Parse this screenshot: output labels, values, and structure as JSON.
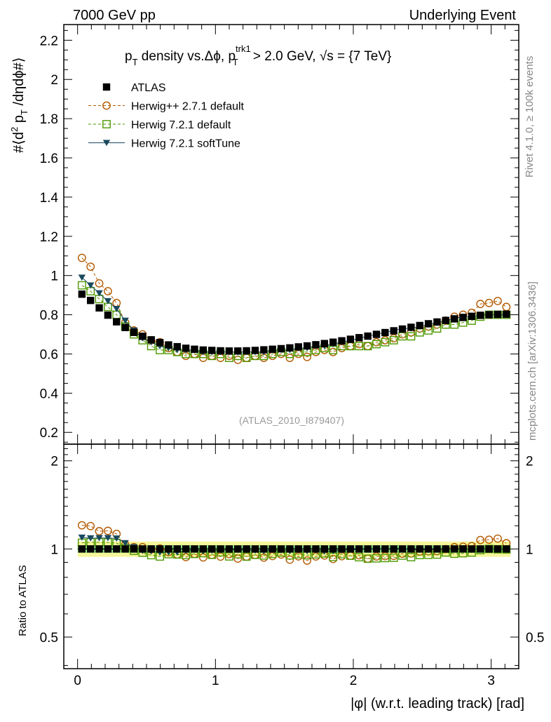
{
  "header": {
    "left": "7000 GeV pp",
    "right": "Underlying Event",
    "side_top": "Rivet 4.1.0, ≥ 100k events",
    "side_bottom": "mcplots.cern.ch [arXiv:1306.3436]"
  },
  "chart_data": {
    "type": "scatter",
    "title": "pT density vs.Δφ, pT trk1 > 2.0 GeV, √s = {7 TeV}",
    "watermark": "(ATLAS_2010_I879407)",
    "xlabel": "|φ| (w.r.t. leading track) [rad]",
    "ylabel": "#⟨d² pT /dηdφ#⟩",
    "ratio_ylabel": "Ratio to ATLAS",
    "xlim": [
      -0.1,
      3.2
    ],
    "ylim": [
      0.14,
      2.28
    ],
    "ratio_ylim": [
      0.39,
      2.28
    ],
    "x_ticks": [
      "0",
      "1",
      "2",
      "3"
    ],
    "y_ticks": [
      "0.2",
      "0.4",
      "0.6",
      "0.8",
      "1",
      "1.2",
      "1.4",
      "1.6",
      "1.8",
      "2",
      "2.2"
    ],
    "ratio_ticks": [
      "0.5",
      "1",
      "2"
    ],
    "x": [
      0.0314,
      0.0942,
      0.157,
      0.2199,
      0.2827,
      0.3456,
      0.4084,
      0.4712,
      0.5341,
      0.5969,
      0.6597,
      0.7226,
      0.7854,
      0.8482,
      0.9111,
      0.9739,
      1.0367,
      1.0996,
      1.1624,
      1.2252,
      1.2881,
      1.3509,
      1.4137,
      1.4765,
      1.5394,
      1.6022,
      1.665,
      1.7279,
      1.7907,
      1.8535,
      1.9164,
      1.9792,
      2.042,
      2.1049,
      2.1677,
      2.2305,
      2.2934,
      2.3562,
      2.419,
      2.4819,
      2.5447,
      2.6075,
      2.6704,
      2.7332,
      2.796,
      2.8589,
      2.9217,
      2.9845,
      3.0474,
      3.1102
    ],
    "series": [
      {
        "name": "ATLAS",
        "color": "#000000",
        "marker": "square-filled",
        "values": [
          0.905,
          0.873,
          0.835,
          0.798,
          0.764,
          0.735,
          0.71,
          0.69,
          0.672,
          0.658,
          0.646,
          0.637,
          0.629,
          0.624,
          0.62,
          0.618,
          0.616,
          0.615,
          0.615,
          0.616,
          0.618,
          0.621,
          0.624,
          0.627,
          0.631,
          0.636,
          0.641,
          0.647,
          0.653,
          0.66,
          0.667,
          0.675,
          0.683,
          0.691,
          0.7,
          0.709,
          0.718,
          0.727,
          0.736,
          0.745,
          0.754,
          0.763,
          0.771,
          0.779,
          0.786,
          0.792,
          0.797,
          0.8,
          0.802,
          0.803
        ]
      },
      {
        "name": "Herwig++ 2.7.1 default",
        "color": "#b35900",
        "marker": "circle-open",
        "line": "dashed",
        "values": [
          1.09,
          1.045,
          0.96,
          0.92,
          0.86,
          0.76,
          0.72,
          0.7,
          0.67,
          0.66,
          0.63,
          0.61,
          0.59,
          0.6,
          0.58,
          0.59,
          0.58,
          0.59,
          0.57,
          0.58,
          0.59,
          0.58,
          0.59,
          0.6,
          0.58,
          0.6,
          0.585,
          0.61,
          0.62,
          0.61,
          0.63,
          0.64,
          0.65,
          0.64,
          0.66,
          0.67,
          0.68,
          0.7,
          0.71,
          0.73,
          0.74,
          0.75,
          0.77,
          0.79,
          0.8,
          0.81,
          0.855,
          0.86,
          0.87,
          0.84
        ]
      },
      {
        "name": "Herwig 7.2.1 default",
        "color": "#4d9900",
        "marker": "square-open",
        "line": "dashed",
        "values": [
          0.95,
          0.92,
          0.88,
          0.84,
          0.8,
          0.74,
          0.7,
          0.67,
          0.64,
          0.62,
          0.62,
          0.61,
          0.6,
          0.6,
          0.6,
          0.59,
          0.6,
          0.58,
          0.59,
          0.58,
          0.59,
          0.59,
          0.6,
          0.61,
          0.6,
          0.61,
          0.61,
          0.62,
          0.63,
          0.62,
          0.64,
          0.64,
          0.64,
          0.64,
          0.65,
          0.66,
          0.67,
          0.69,
          0.69,
          0.71,
          0.72,
          0.73,
          0.75,
          0.75,
          0.76,
          0.77,
          0.79,
          0.8,
          0.8,
          0.8
        ]
      },
      {
        "name": "Herwig 7.2.1 softTune",
        "color": "#19495e",
        "marker": "triangle-down-filled",
        "line": "solid",
        "values": [
          0.99,
          0.95,
          0.91,
          0.87,
          0.83,
          0.77,
          0.72,
          0.68,
          0.66,
          0.64,
          0.63,
          0.62,
          0.62,
          0.62,
          0.61,
          0.61,
          0.61,
          0.61,
          0.61,
          0.61,
          0.61,
          0.61,
          0.62,
          0.62,
          0.62,
          0.63,
          0.63,
          0.64,
          0.64,
          0.65,
          0.66,
          0.67,
          0.68,
          0.69,
          0.7,
          0.71,
          0.72,
          0.73,
          0.73,
          0.74,
          0.75,
          0.76,
          0.77,
          0.78,
          0.79,
          0.79,
          0.8,
          0.8,
          0.8,
          0.8
        ]
      }
    ],
    "ratio_bands": {
      "inner": 0.03,
      "outer": 0.06,
      "inner_color": "#8fe88a",
      "outer_color": "#f5f59a"
    }
  }
}
